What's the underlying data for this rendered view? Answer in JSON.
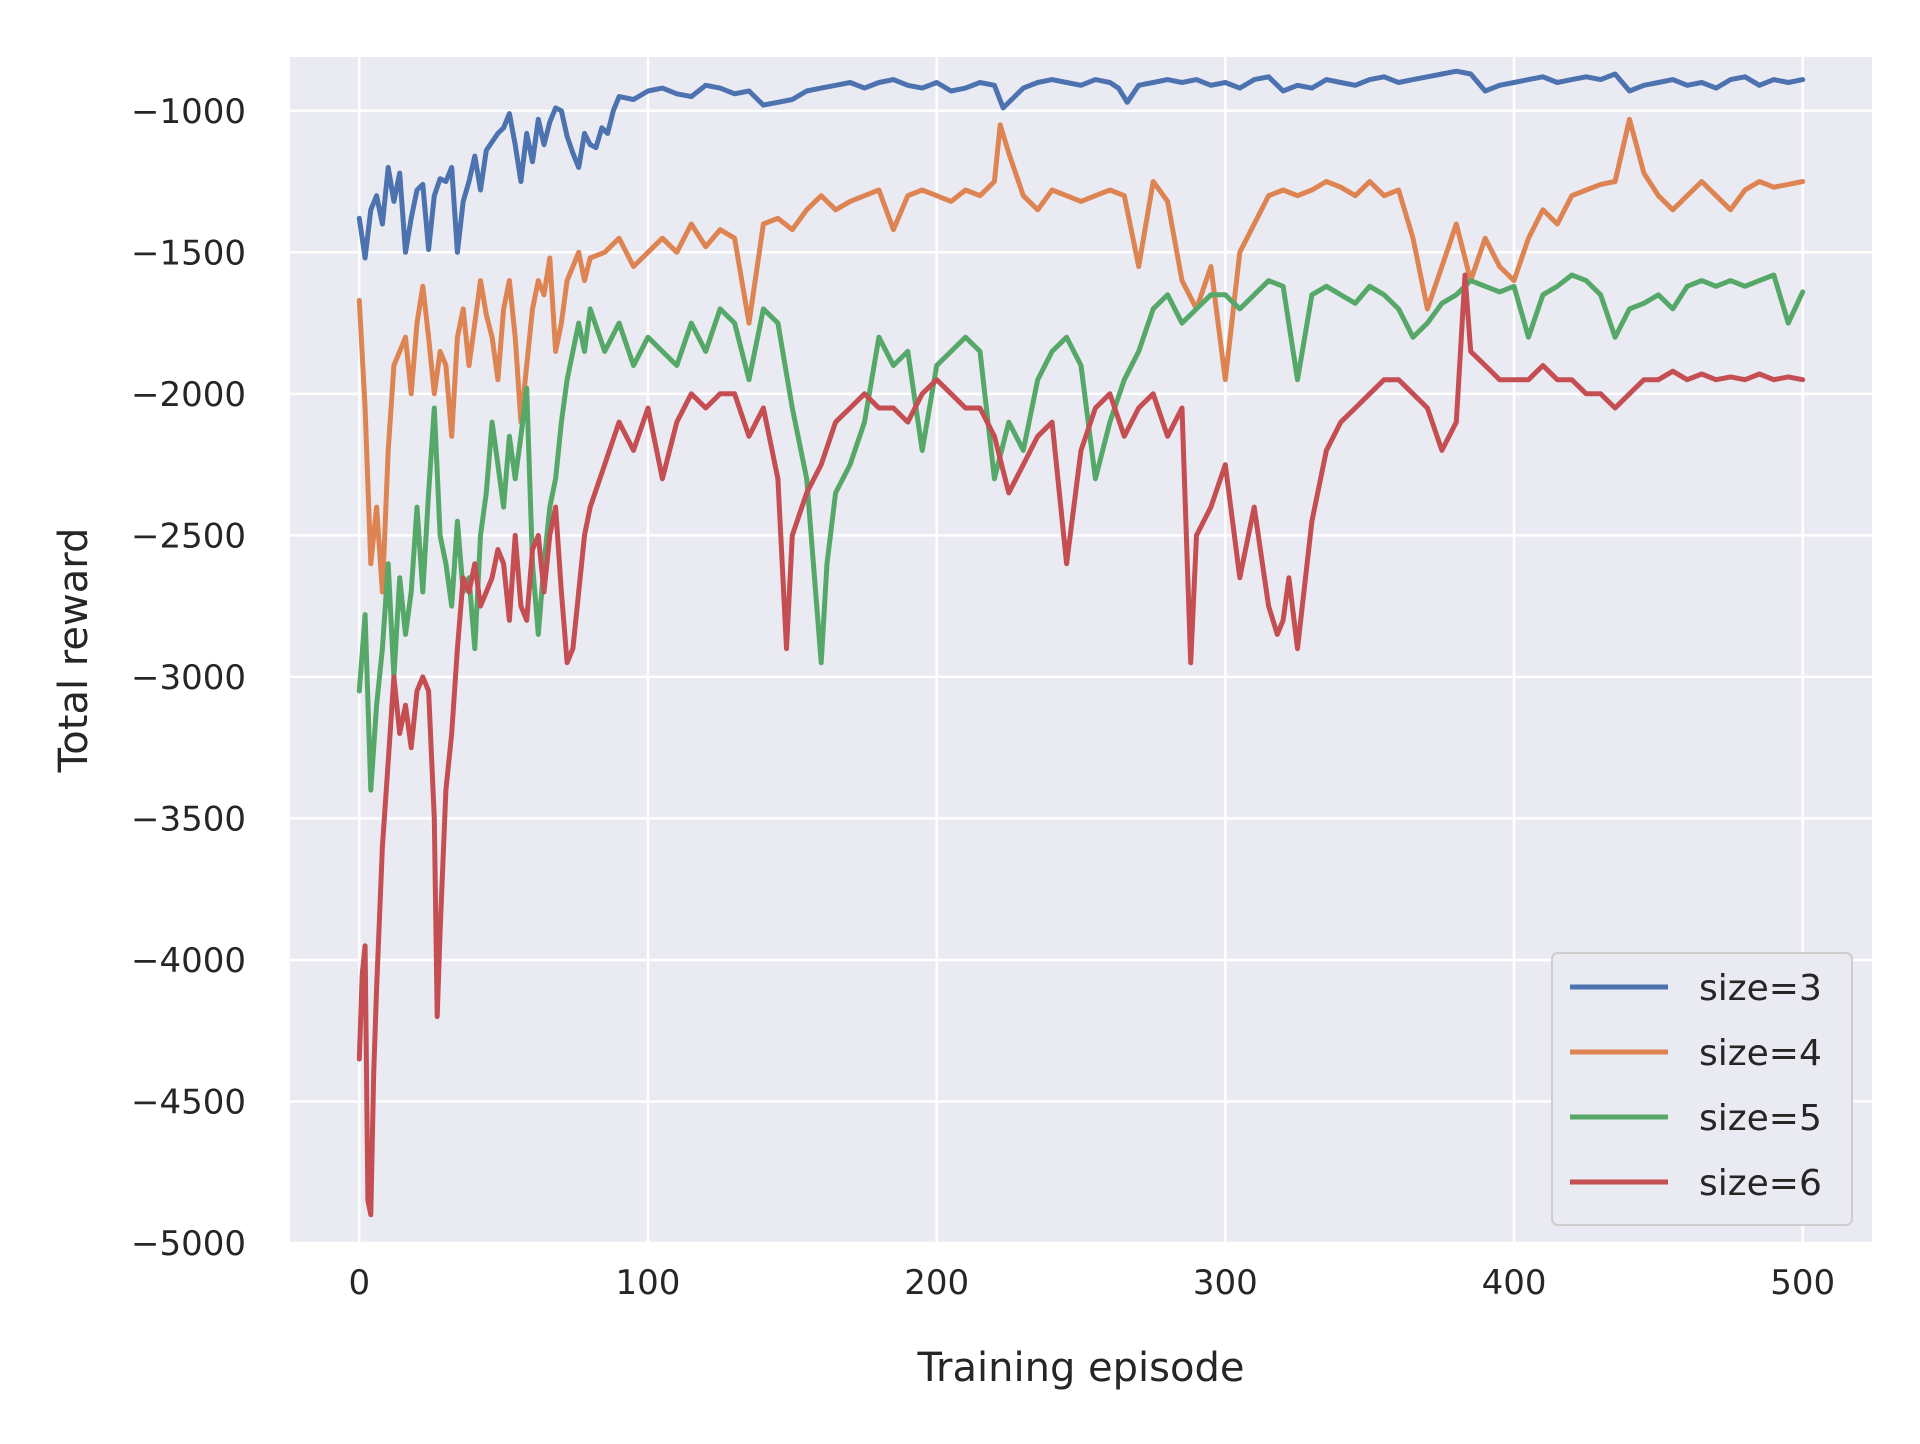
{
  "chart_data": {
    "type": "line",
    "title": "",
    "xlabel": "Training episode",
    "ylabel": "Total reward",
    "xlim": [
      -24,
      524
    ],
    "ylim": [
      -5000,
      -810
    ],
    "xticks": [
      0,
      100,
      200,
      300,
      400,
      500
    ],
    "yticks": [
      -5000,
      -4500,
      -4000,
      -3500,
      -3000,
      -2500,
      -2000,
      -1500,
      -1000
    ],
    "xtick_labels": [
      "0",
      "100",
      "200",
      "300",
      "400",
      "500"
    ],
    "ytick_labels": [
      "−5000",
      "−4500",
      "−4000",
      "−3500",
      "−3000",
      "−2500",
      "−2000",
      "−1500",
      "−1000"
    ],
    "grid": true,
    "legend_position": "lower-right",
    "background": "#eaeaf2",
    "series": [
      {
        "name": "size=3",
        "color": "#4c72b0",
        "x": [
          0,
          2,
          4,
          6,
          8,
          10,
          12,
          14,
          16,
          18,
          20,
          22,
          24,
          26,
          28,
          30,
          32,
          34,
          36,
          38,
          40,
          42,
          44,
          46,
          48,
          50,
          52,
          54,
          56,
          58,
          60,
          62,
          64,
          66,
          68,
          70,
          72,
          74,
          76,
          78,
          80,
          82,
          84,
          86,
          88,
          90,
          95,
          100,
          105,
          110,
          115,
          120,
          125,
          130,
          135,
          140,
          145,
          150,
          155,
          160,
          165,
          170,
          175,
          180,
          185,
          190,
          195,
          200,
          205,
          210,
          215,
          220,
          223,
          226,
          230,
          235,
          240,
          245,
          250,
          255,
          260,
          263,
          266,
          270,
          275,
          280,
          285,
          290,
          295,
          300,
          305,
          310,
          315,
          320,
          325,
          330,
          335,
          340,
          345,
          350,
          355,
          360,
          365,
          370,
          375,
          380,
          385,
          390,
          395,
          400,
          405,
          410,
          415,
          420,
          425,
          430,
          435,
          440,
          445,
          450,
          455,
          460,
          465,
          470,
          475,
          480,
          485,
          490,
          495,
          500
        ],
        "y": [
          -1380,
          -1520,
          -1350,
          -1300,
          -1400,
          -1200,
          -1320,
          -1220,
          -1500,
          -1380,
          -1280,
          -1260,
          -1490,
          -1300,
          -1240,
          -1250,
          -1200,
          -1500,
          -1320,
          -1250,
          -1160,
          -1280,
          -1140,
          -1110,
          -1080,
          -1060,
          -1010,
          -1120,
          -1250,
          -1080,
          -1180,
          -1030,
          -1120,
          -1040,
          -990,
          -1000,
          -1090,
          -1150,
          -1200,
          -1080,
          -1120,
          -1130,
          -1060,
          -1080,
          -1000,
          -950,
          -960,
          -930,
          -920,
          -940,
          -950,
          -910,
          -920,
          -940,
          -930,
          -980,
          -970,
          -960,
          -930,
          -920,
          -910,
          -900,
          -920,
          -900,
          -890,
          -910,
          -920,
          -900,
          -930,
          -920,
          -900,
          -910,
          -990,
          -960,
          -920,
          -900,
          -890,
          -900,
          -910,
          -890,
          -900,
          -920,
          -970,
          -910,
          -900,
          -890,
          -900,
          -890,
          -910,
          -900,
          -920,
          -890,
          -880,
          -930,
          -910,
          -920,
          -890,
          -900,
          -910,
          -890,
          -880,
          -900,
          -890,
          -880,
          -870,
          -860,
          -870,
          -930,
          -910,
          -900,
          -890,
          -880,
          -900,
          -890,
          -880,
          -890,
          -870,
          -930,
          -910,
          -900,
          -890,
          -910,
          -900,
          -920,
          -890,
          -880,
          -910,
          -890,
          -900,
          -890
        ],
        "line_width": 5
      },
      {
        "name": "size=4",
        "color": "#dd8452",
        "x": [
          0,
          2,
          4,
          6,
          8,
          10,
          12,
          14,
          16,
          18,
          20,
          22,
          24,
          26,
          28,
          30,
          32,
          34,
          36,
          38,
          40,
          42,
          44,
          46,
          48,
          50,
          52,
          54,
          56,
          58,
          60,
          62,
          64,
          66,
          68,
          70,
          72,
          74,
          76,
          78,
          80,
          85,
          90,
          95,
          100,
          105,
          110,
          115,
          120,
          125,
          130,
          135,
          140,
          145,
          150,
          155,
          160,
          165,
          170,
          175,
          180,
          185,
          190,
          195,
          200,
          205,
          210,
          215,
          220,
          222,
          225,
          230,
          235,
          240,
          245,
          250,
          255,
          260,
          265,
          270,
          275,
          280,
          285,
          290,
          295,
          300,
          305,
          310,
          315,
          320,
          325,
          330,
          335,
          340,
          345,
          350,
          355,
          360,
          365,
          370,
          375,
          380,
          385,
          390,
          395,
          400,
          405,
          410,
          415,
          420,
          425,
          430,
          435,
          440,
          445,
          450,
          455,
          460,
          465,
          470,
          475,
          480,
          485,
          490,
          495,
          500
        ],
        "y": [
          -1670,
          -2050,
          -2600,
          -2400,
          -2700,
          -2200,
          -1900,
          -1850,
          -1800,
          -2000,
          -1750,
          -1620,
          -1800,
          -2000,
          -1850,
          -1900,
          -2150,
          -1800,
          -1700,
          -1900,
          -1750,
          -1600,
          -1720,
          -1800,
          -1950,
          -1700,
          -1600,
          -1800,
          -2100,
          -1900,
          -1700,
          -1600,
          -1650,
          -1520,
          -1850,
          -1750,
          -1600,
          -1550,
          -1500,
          -1600,
          -1520,
          -1500,
          -1450,
          -1550,
          -1500,
          -1450,
          -1500,
          -1400,
          -1480,
          -1420,
          -1450,
          -1750,
          -1400,
          -1380,
          -1420,
          -1350,
          -1300,
          -1350,
          -1320,
          -1300,
          -1280,
          -1420,
          -1300,
          -1280,
          -1300,
          -1320,
          -1280,
          -1300,
          -1250,
          -1050,
          -1150,
          -1300,
          -1350,
          -1280,
          -1300,
          -1320,
          -1300,
          -1280,
          -1300,
          -1550,
          -1250,
          -1320,
          -1600,
          -1700,
          -1550,
          -1950,
          -1500,
          -1400,
          -1300,
          -1280,
          -1300,
          -1280,
          -1250,
          -1270,
          -1300,
          -1250,
          -1300,
          -1280,
          -1450,
          -1700,
          -1550,
          -1400,
          -1600,
          -1450,
          -1550,
          -1600,
          -1450,
          -1350,
          -1400,
          -1300,
          -1280,
          -1260,
          -1250,
          -1030,
          -1220,
          -1300,
          -1350,
          -1300,
          -1250,
          -1300,
          -1350,
          -1280,
          -1250,
          -1270,
          -1260,
          -1250
        ],
        "line_width": 5
      },
      {
        "name": "size=5",
        "color": "#55a868",
        "x": [
          0,
          2,
          4,
          6,
          8,
          10,
          12,
          14,
          16,
          18,
          20,
          22,
          24,
          26,
          28,
          30,
          32,
          34,
          36,
          38,
          40,
          42,
          44,
          46,
          48,
          50,
          52,
          54,
          56,
          58,
          60,
          62,
          64,
          66,
          68,
          70,
          72,
          74,
          76,
          78,
          80,
          85,
          90,
          95,
          100,
          105,
          110,
          115,
          120,
          125,
          130,
          135,
          140,
          145,
          150,
          155,
          160,
          162,
          165,
          170,
          175,
          180,
          185,
          190,
          195,
          200,
          205,
          210,
          215,
          220,
          225,
          230,
          235,
          240,
          245,
          250,
          255,
          260,
          265,
          270,
          275,
          280,
          285,
          290,
          295,
          300,
          305,
          310,
          315,
          320,
          325,
          330,
          335,
          340,
          345,
          350,
          355,
          360,
          365,
          370,
          375,
          380,
          385,
          390,
          395,
          400,
          405,
          410,
          415,
          420,
          425,
          430,
          435,
          440,
          445,
          450,
          455,
          460,
          465,
          470,
          475,
          480,
          485,
          490,
          495,
          500
        ],
        "y": [
          -3050,
          -2780,
          -3400,
          -3100,
          -2900,
          -2600,
          -3000,
          -2650,
          -2850,
          -2700,
          -2400,
          -2700,
          -2350,
          -2050,
          -2500,
          -2600,
          -2750,
          -2450,
          -2700,
          -2650,
          -2900,
          -2500,
          -2350,
          -2100,
          -2250,
          -2400,
          -2150,
          -2300,
          -2150,
          -1980,
          -2600,
          -2850,
          -2600,
          -2400,
          -2300,
          -2100,
          -1950,
          -1850,
          -1750,
          -1850,
          -1700,
          -1850,
          -1750,
          -1900,
          -1800,
          -1850,
          -1900,
          -1750,
          -1850,
          -1700,
          -1750,
          -1950,
          -1700,
          -1750,
          -2050,
          -2300,
          -2950,
          -2600,
          -2350,
          -2250,
          -2100,
          -1800,
          -1900,
          -1850,
          -2200,
          -1900,
          -1850,
          -1800,
          -1850,
          -2300,
          -2100,
          -2200,
          -1950,
          -1850,
          -1800,
          -1900,
          -2300,
          -2100,
          -1950,
          -1850,
          -1700,
          -1650,
          -1750,
          -1700,
          -1650,
          -1650,
          -1700,
          -1650,
          -1600,
          -1620,
          -1950,
          -1650,
          -1620,
          -1650,
          -1680,
          -1620,
          -1650,
          -1700,
          -1800,
          -1750,
          -1680,
          -1650,
          -1600,
          -1620,
          -1640,
          -1620,
          -1800,
          -1650,
          -1620,
          -1580,
          -1600,
          -1650,
          -1800,
          -1700,
          -1680,
          -1650,
          -1700,
          -1620,
          -1600,
          -1620,
          -1600,
          -1620,
          -1600,
          -1580,
          -1750,
          -1640
        ],
        "line_width": 5
      },
      {
        "name": "size=6",
        "color": "#c44e52",
        "x": [
          0,
          1,
          2,
          3,
          4,
          5,
          6,
          8,
          10,
          12,
          14,
          16,
          18,
          20,
          22,
          24,
          26,
          27,
          28,
          30,
          32,
          34,
          36,
          38,
          40,
          42,
          44,
          46,
          48,
          50,
          52,
          54,
          56,
          58,
          60,
          62,
          64,
          66,
          68,
          70,
          72,
          74,
          76,
          78,
          80,
          85,
          90,
          95,
          100,
          105,
          110,
          115,
          120,
          125,
          130,
          135,
          140,
          145,
          148,
          150,
          155,
          160,
          165,
          170,
          175,
          180,
          185,
          190,
          195,
          200,
          205,
          210,
          215,
          220,
          225,
          230,
          235,
          240,
          245,
          250,
          255,
          260,
          265,
          270,
          275,
          280,
          285,
          288,
          290,
          295,
          300,
          305,
          310,
          315,
          318,
          320,
          322,
          325,
          330,
          335,
          340,
          345,
          350,
          355,
          360,
          365,
          370,
          375,
          380,
          383,
          385,
          390,
          395,
          400,
          405,
          410,
          415,
          420,
          425,
          430,
          435,
          440,
          445,
          450,
          455,
          460,
          465,
          470,
          475,
          480,
          485,
          490,
          495,
          500
        ],
        "y": [
          -4350,
          -4050,
          -3950,
          -4850,
          -4900,
          -4400,
          -4100,
          -3600,
          -3300,
          -3000,
          -3200,
          -3100,
          -3250,
          -3050,
          -3000,
          -3050,
          -3500,
          -4200,
          -3900,
          -3400,
          -3200,
          -2900,
          -2650,
          -2700,
          -2600,
          -2750,
          -2700,
          -2650,
          -2550,
          -2600,
          -2800,
          -2500,
          -2750,
          -2800,
          -2550,
          -2500,
          -2700,
          -2500,
          -2400,
          -2700,
          -2950,
          -2900,
          -2700,
          -2500,
          -2400,
          -2250,
          -2100,
          -2200,
          -2050,
          -2300,
          -2100,
          -2000,
          -2050,
          -2000,
          -2000,
          -2150,
          -2050,
          -2300,
          -2900,
          -2500,
          -2350,
          -2250,
          -2100,
          -2050,
          -2000,
          -2050,
          -2050,
          -2100,
          -2000,
          -1950,
          -2000,
          -2050,
          -2050,
          -2150,
          -2350,
          -2250,
          -2150,
          -2100,
          -2600,
          -2200,
          -2050,
          -2000,
          -2150,
          -2050,
          -2000,
          -2150,
          -2050,
          -2950,
          -2500,
          -2400,
          -2250,
          -2650,
          -2400,
          -2750,
          -2850,
          -2800,
          -2650,
          -2900,
          -2450,
          -2200,
          -2100,
          -2050,
          -2000,
          -1950,
          -1950,
          -2000,
          -2050,
          -2200,
          -2100,
          -1580,
          -1850,
          -1900,
          -1950,
          -1950,
          -1950,
          -1900,
          -1950,
          -1950,
          -2000,
          -2000,
          -2050,
          -2000,
          -1950,
          -1950,
          -1920,
          -1950,
          -1930,
          -1950,
          -1940,
          -1950,
          -1930,
          -1950,
          -1940,
          -1950
        ],
        "line_width": 5
      }
    ]
  }
}
